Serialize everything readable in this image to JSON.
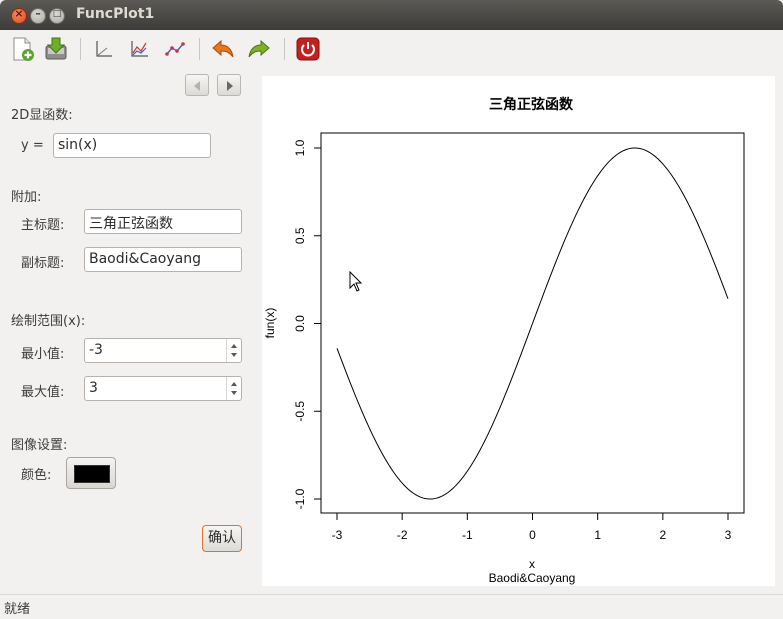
{
  "window": {
    "title": "FuncPlot1"
  },
  "toolbar": {
    "icons": [
      "new-file-icon",
      "save-icon",
      "axes-icon",
      "line-chart-icon",
      "scatter-line-icon",
      "undo-icon",
      "redo-icon",
      "power-icon"
    ],
    "colors": {
      "undo": "#e8761c",
      "redo": "#7fb126",
      "power": "#c4211e"
    }
  },
  "left_panel": {
    "section_2d": "2D显函数:",
    "y_label": "y =",
    "y_value": "sin(x)",
    "section_extra": "附加:",
    "main_title_label": "主标题:",
    "main_title_value": "三角正弦函数",
    "sub_title_label": "副标题:",
    "sub_title_value": "Baodi&Caoyang",
    "section_range": "绘制范围(x):",
    "min_label": "最小值:",
    "min_value": "-3",
    "max_label": "最大值:",
    "max_value": "3",
    "section_image": "图像设置:",
    "color_label": "颜色:",
    "color_value": "#000000",
    "confirm": "确认"
  },
  "status": {
    "text": "就绪"
  },
  "chart_data": {
    "type": "line",
    "title": "三角正弦函数",
    "subtitle": "Baodi&Caoyang",
    "xlabel": "x",
    "ylabel": "fun(x)",
    "function": "sin(x)",
    "xlim": [
      -3,
      3
    ],
    "ylim": [
      -1.0,
      1.0
    ],
    "x_ticks": [
      "-3",
      "-2",
      "-1",
      "0",
      "1",
      "2",
      "3"
    ],
    "y_ticks": [
      "-1.0",
      "-0.5",
      "0.0",
      "0.5",
      "1.0"
    ],
    "line_color": "#000000",
    "x": [
      -3.0,
      -2.5,
      -2.0,
      -1.5708,
      -1.0,
      -0.5,
      0.0,
      0.5,
      1.0,
      1.5708,
      2.0,
      2.5,
      3.0
    ],
    "y": [
      -0.1411,
      -0.5985,
      -0.9093,
      -1.0,
      -0.8415,
      -0.4794,
      0.0,
      0.4794,
      0.8415,
      1.0,
      0.9093,
      0.5985,
      0.1411
    ]
  }
}
